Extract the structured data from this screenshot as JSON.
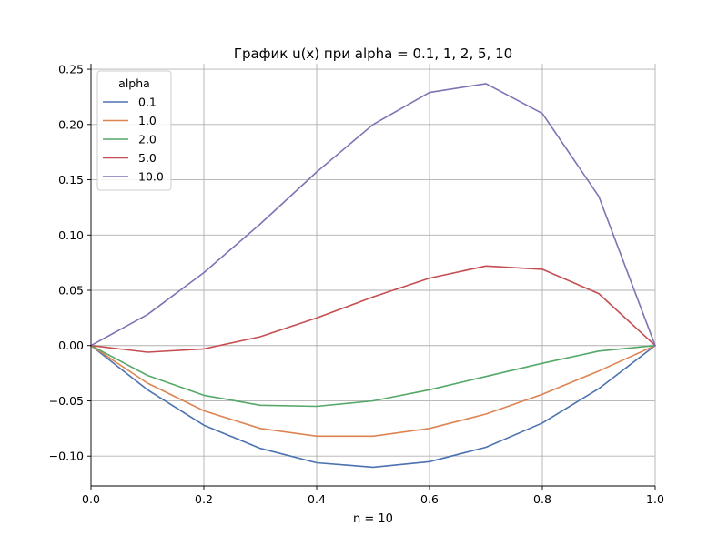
{
  "chart_data": {
    "type": "line",
    "title": "График u(x) при alpha = 0.1, 1, 2, 5, 10",
    "xlabel": "n = 10",
    "ylabel": "",
    "xlim": [
      0,
      1
    ],
    "ylim": [
      -0.127,
      0.255
    ],
    "grid": true,
    "legend": {
      "title": "alpha",
      "placement": "top-left"
    },
    "x": [
      0.0,
      0.1,
      0.2,
      0.3,
      0.4,
      0.5,
      0.6,
      0.7,
      0.8,
      0.9,
      1.0
    ],
    "x_ticks": [
      "0.0",
      "0.2",
      "0.4",
      "0.6",
      "0.8",
      "1.0"
    ],
    "y_ticks": [
      "−0.10",
      "−0.05",
      "0.00",
      "0.05",
      "0.10",
      "0.15",
      "0.20",
      "0.25"
    ],
    "series": [
      {
        "name": "0.1",
        "color": "#4c72b0",
        "values": [
          0.0,
          -0.04,
          -0.072,
          -0.093,
          -0.106,
          -0.11,
          -0.105,
          -0.092,
          -0.07,
          -0.039,
          0.0
        ]
      },
      {
        "name": "1.0",
        "color": "#dd8452",
        "values": [
          0.0,
          -0.034,
          -0.059,
          -0.075,
          -0.082,
          -0.082,
          -0.075,
          -0.062,
          -0.044,
          -0.023,
          0.0
        ]
      },
      {
        "name": "2.0",
        "color": "#55a868",
        "values": [
          0.0,
          -0.027,
          -0.045,
          -0.054,
          -0.055,
          -0.05,
          -0.04,
          -0.028,
          -0.016,
          -0.005,
          0.0
        ]
      },
      {
        "name": "5.0",
        "color": "#c44e52",
        "values": [
          0.0,
          -0.006,
          -0.003,
          0.008,
          0.025,
          0.044,
          0.061,
          0.072,
          0.069,
          0.047,
          0.0
        ]
      },
      {
        "name": "10.0",
        "color": "#8172b3",
        "values": [
          0.0,
          0.028,
          0.066,
          0.11,
          0.157,
          0.2,
          0.229,
          0.237,
          0.21,
          0.135,
          0.0
        ]
      }
    ]
  }
}
